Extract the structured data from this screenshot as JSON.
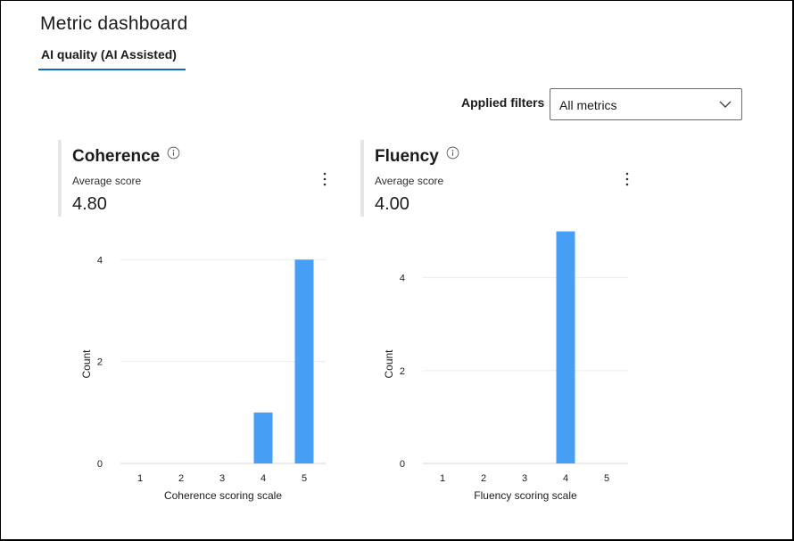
{
  "header": {
    "title": "Metric dashboard"
  },
  "tabs": [
    {
      "label": "AI quality (AI Assisted)",
      "selected": true
    }
  ],
  "filters": {
    "label": "Applied filters",
    "selected": "All metrics"
  },
  "cards": [
    {
      "title": "Coherence",
      "subtitle": "Average score",
      "score": "4.80"
    },
    {
      "title": "Fluency",
      "subtitle": "Average score",
      "score": "4.00"
    }
  ],
  "colors": {
    "accent": "#0f6cbd",
    "bar": "#479ef5"
  },
  "chart_data": [
    {
      "type": "bar",
      "categories": [
        "1",
        "2",
        "3",
        "4",
        "5"
      ],
      "values": [
        0,
        0,
        0,
        1,
        4
      ],
      "xlabel": "Coherence scoring scale",
      "ylabel": "Count",
      "yticks": [
        "0",
        "2",
        "4"
      ],
      "ylim": [
        0,
        4.6
      ],
      "grid": true
    },
    {
      "type": "bar",
      "categories": [
        "1",
        "2",
        "3",
        "4",
        "5"
      ],
      "values": [
        0,
        0,
        0,
        5,
        0
      ],
      "xlabel": "Fluency scoring scale",
      "ylabel": "Count",
      "yticks": [
        "0",
        "2",
        "4"
      ],
      "ylim": [
        0,
        5.05
      ],
      "grid": true
    }
  ]
}
